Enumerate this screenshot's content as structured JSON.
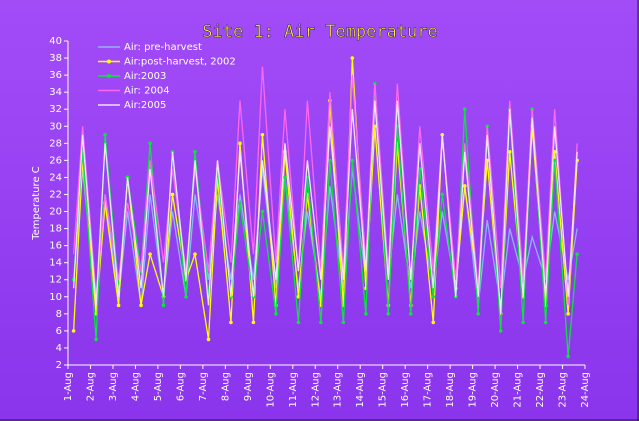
{
  "chart_data": {
    "type": "line",
    "title": "Site 1: Air Temperature",
    "y_label": "Temperature C",
    "x": [
      0.25,
      0.65,
      1.25,
      1.65,
      2.25,
      2.65,
      3.25,
      3.65,
      4.25,
      4.65,
      5.25,
      5.65,
      6.25,
      6.65,
      7.25,
      7.65,
      8.25,
      8.65,
      9.25,
      9.65,
      10.25,
      10.65,
      11.25,
      11.65,
      12.25,
      12.65,
      13.25,
      13.65,
      14.25,
      14.65,
      15.25,
      15.65,
      16.25,
      16.65,
      17.25,
      17.65,
      18.25,
      18.65,
      19.25,
      19.65,
      20.25,
      20.65,
      21.25,
      21.65,
      22.25,
      22.65
    ],
    "series": [
      {
        "name": "Air: pre-harvest",
        "color": "#8cb4ff",
        "markers": false,
        "values": [
          12,
          25,
          9,
          22,
          10,
          20,
          9,
          22,
          10,
          20,
          10,
          22,
          12,
          22,
          12,
          22,
          12,
          25,
          11,
          24,
          11,
          20,
          10,
          23,
          11,
          25,
          12,
          35,
          12,
          22,
          11,
          20,
          11,
          20,
          11,
          23,
          9,
          19,
          9,
          18,
          12,
          17,
          12,
          20,
          12,
          18
        ]
      },
      {
        "name": "Air:post-harvest, 2002",
        "color": "#ffff00",
        "markers": true,
        "values": [
          6,
          26,
          8,
          21,
          9,
          24,
          9,
          15,
          10,
          22,
          12,
          15,
          5,
          24,
          7,
          28,
          7,
          29,
          9,
          27,
          10,
          22,
          9,
          33,
          9,
          38,
          11,
          30,
          9,
          28,
          9,
          23,
          7,
          29,
          11,
          23,
          11,
          26,
          8,
          27,
          10,
          30,
          9,
          27,
          8,
          26
        ]
      },
      {
        "name": "Air:2003",
        "color": "#10e040",
        "markers": true,
        "values": [
          12,
          27,
          5,
          29,
          11,
          24,
          13,
          28,
          9,
          27,
          10,
          27,
          10,
          25,
          10,
          21,
          10,
          20,
          8,
          24,
          7,
          24,
          7,
          26,
          7,
          26,
          8,
          35,
          8,
          30,
          8,
          25,
          10,
          22,
          10,
          32,
          8,
          30,
          6,
          32,
          7,
          32,
          7,
          26,
          3,
          15
        ]
      },
      {
        "name": "Air: 2004",
        "color": "#ff66f0",
        "markers": false,
        "values": [
          15,
          30,
          10,
          22,
          12,
          21,
          13,
          26,
          14,
          25,
          13,
          25,
          13,
          26,
          14,
          33,
          15,
          37,
          14,
          32,
          13,
          33,
          13,
          34,
          13,
          36,
          14,
          35,
          13,
          35,
          12,
          30,
          13,
          29,
          12,
          28,
          11,
          30,
          11,
          33,
          12,
          32,
          12,
          32,
          9,
          28
        ]
      },
      {
        "name": "Air:2005",
        "color": "#efe4ff",
        "markers": false,
        "values": [
          11,
          29,
          9,
          28,
          10,
          24,
          11,
          25,
          10,
          27,
          12,
          26,
          9,
          26,
          10,
          27,
          10,
          26,
          12,
          28,
          13,
          26,
          12,
          30,
          12,
          32,
          13,
          33,
          12,
          33,
          12,
          28,
          11,
          29,
          10,
          27,
          10,
          29,
          8,
          32,
          10,
          31,
          10,
          30,
          10,
          27
        ]
      }
    ],
    "xlim": [
      0,
      23
    ],
    "xticks": [
      {
        "value": 0,
        "label": "1-Aug"
      },
      {
        "value": 1,
        "label": "2-Aug"
      },
      {
        "value": 2,
        "label": "3-Aug"
      },
      {
        "value": 3,
        "label": "4-Aug"
      },
      {
        "value": 4,
        "label": "5-Aug"
      },
      {
        "value": 5,
        "label": "6-Aug"
      },
      {
        "value": 6,
        "label": "7-Aug"
      },
      {
        "value": 7,
        "label": "8-Aug"
      },
      {
        "value": 8,
        "label": "9-Aug"
      },
      {
        "value": 9,
        "label": "10-Aug"
      },
      {
        "value": 10,
        "label": "11-Aug"
      },
      {
        "value": 11,
        "label": "12-Aug"
      },
      {
        "value": 12,
        "label": "13-Aug"
      },
      {
        "value": 13,
        "label": "14-Aug"
      },
      {
        "value": 14,
        "label": "15-Aug"
      },
      {
        "value": 15,
        "label": "16-Aug"
      },
      {
        "value": 16,
        "label": "17-Aug"
      },
      {
        "value": 17,
        "label": "18-Aug"
      },
      {
        "value": 18,
        "label": "19-Aug"
      },
      {
        "value": 19,
        "label": "20-Aug"
      },
      {
        "value": 20,
        "label": "21-Aug"
      },
      {
        "value": 21,
        "label": "22-Aug"
      },
      {
        "value": 22,
        "label": "23-Aug"
      },
      {
        "value": 23,
        "label": "24-Aug"
      }
    ],
    "ylim": [
      2,
      40
    ],
    "yticks": [
      2,
      4,
      6,
      8,
      10,
      12,
      14,
      16,
      18,
      20,
      22,
      24,
      26,
      28,
      30,
      32,
      34,
      36,
      38,
      40
    ],
    "grid": false,
    "legend": "top-left"
  }
}
